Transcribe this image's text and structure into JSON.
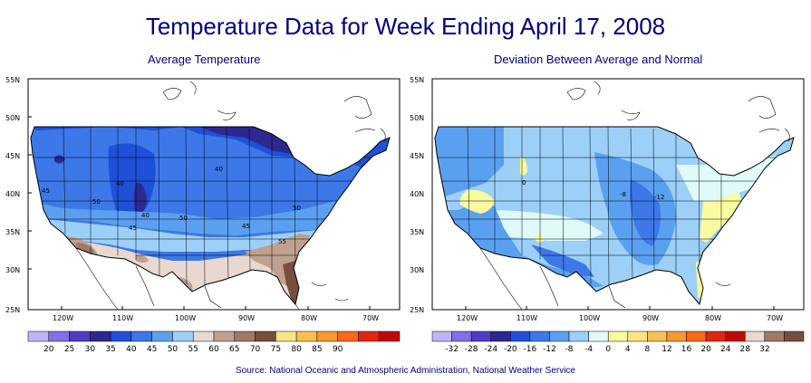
{
  "title": "Temperature Data for Week Ending April 17, 2008",
  "left_map": {
    "subtitle": "Average Temperature",
    "lat_labels": [
      "55N",
      "50N",
      "45N",
      "40N",
      "35N",
      "30N",
      "25N"
    ],
    "lon_labels": [
      "120W",
      "110W",
      "100W",
      "90W",
      "80W",
      "70W"
    ],
    "contour_labels": [
      "40",
      "40",
      "45",
      "50",
      "40",
      "50",
      "45",
      "45",
      "50",
      "55"
    ],
    "legend_values": [
      "20",
      "25",
      "30",
      "35",
      "40",
      "45",
      "50",
      "55",
      "60",
      "65",
      "70",
      "75",
      "80",
      "85",
      "90"
    ],
    "legend_colors": [
      "#c0b4f8",
      "#8070e8",
      "#4c3cc8",
      "#2c2890",
      "#1e50d8",
      "#3c78e8",
      "#5aa0f0",
      "#9cd0f8",
      "#e8d8d0",
      "#c0a090",
      "#a07868",
      "#784e3e",
      "#fae484",
      "#f8c050",
      "#f89830",
      "#f86818",
      "#e02810",
      "#c00808"
    ]
  },
  "right_map": {
    "subtitle": "Deviation Between Average and Normal",
    "lat_labels": [
      "55N",
      "50N",
      "45N",
      "40N",
      "35N",
      "30N",
      "25N"
    ],
    "lon_labels": [
      "120W",
      "110W",
      "100W",
      "90W",
      "80W",
      "70W"
    ],
    "contour_labels": [
      "-8",
      "-12",
      "0"
    ],
    "legend_values": [
      "-32",
      "-28",
      "-24",
      "-20",
      "-16",
      "-12",
      "-8",
      "-4",
      "0",
      "4",
      "8",
      "12",
      "16",
      "20",
      "24",
      "28",
      "32"
    ],
    "legend_colors": [
      "#c0b4f8",
      "#8070e8",
      "#4c3cc8",
      "#2c2890",
      "#1e50d8",
      "#3c78e8",
      "#5aa0f0",
      "#9cd0f8",
      "#e0fafa",
      "#fafaa0",
      "#fae484",
      "#f8c050",
      "#f89830",
      "#f86818",
      "#e02810",
      "#c00808",
      "#e8d8d0",
      "#a07868",
      "#784e3e"
    ]
  },
  "source": "Source:  National Oceanic and Atmospheric Administration, National Weather Service"
}
